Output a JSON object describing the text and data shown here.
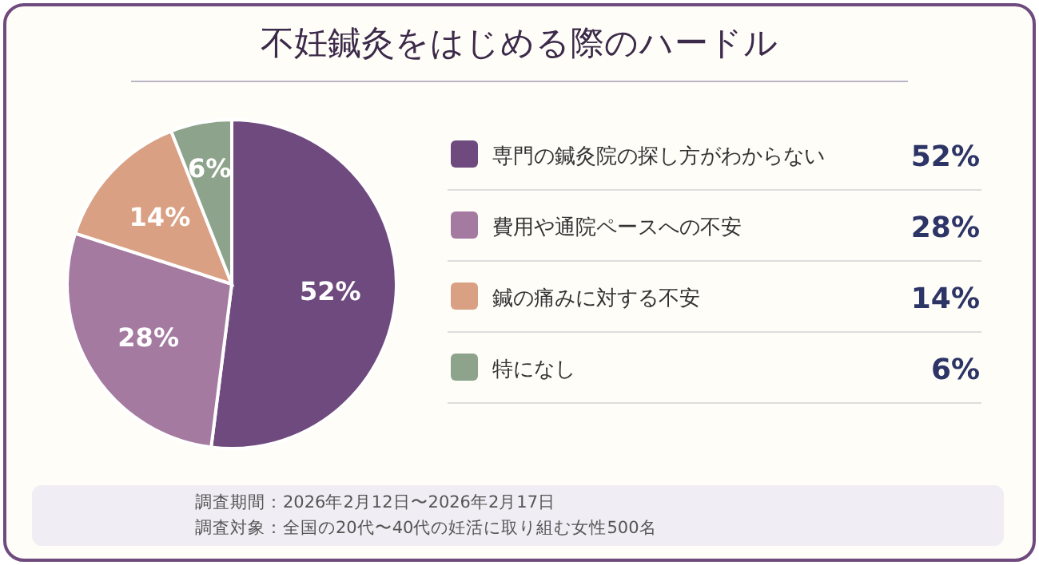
{
  "chart_data": {
    "type": "pie",
    "title": "不妊鍼灸をはじめる際のハードル",
    "categories": [
      "専門の鍼灸院の探し方がわからない",
      "費用や通院ペースへの不安",
      "鍼の痛みに対する不安",
      "特になし"
    ],
    "values": [
      52,
      28,
      14,
      6
    ],
    "colors": [
      "#6f4a7e",
      "#a47aa0",
      "#d9a084",
      "#8ea38b"
    ],
    "value_labels": [
      "52%",
      "28%",
      "14%",
      "6%"
    ],
    "legend": "right",
    "annotations": [
      "調査期間：2026年2月12日〜2026年2月17日",
      "調査対象：全国の20代〜40代の妊活に取り組む女性500名"
    ]
  }
}
